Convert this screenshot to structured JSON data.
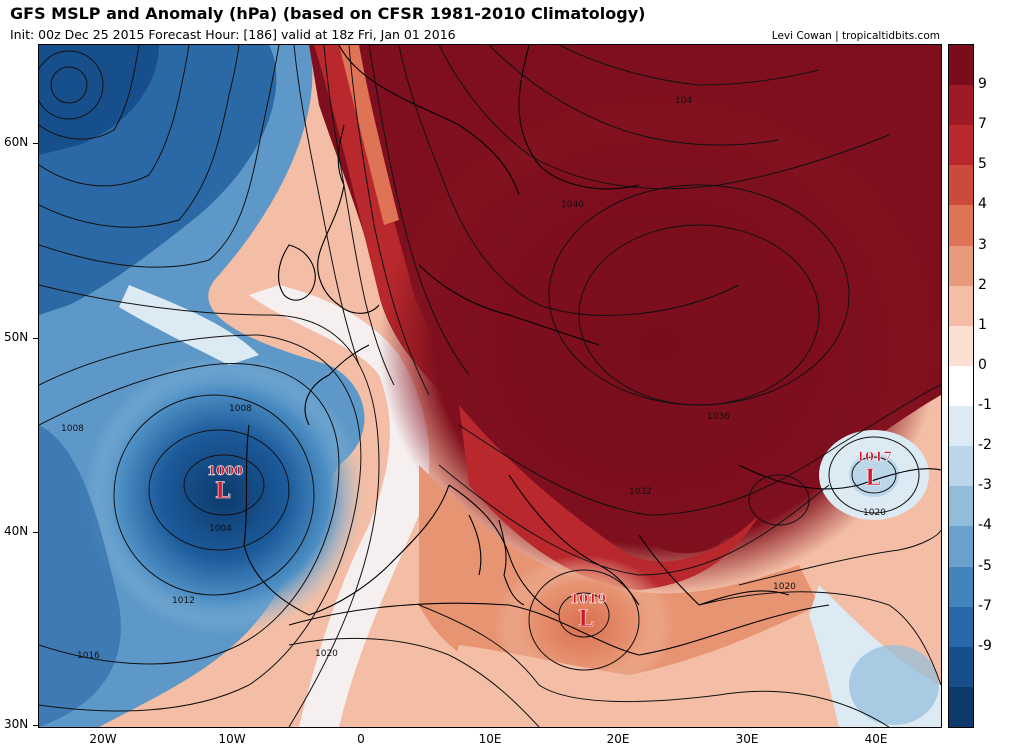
{
  "header": {
    "title": "GFS MSLP and Anomaly (hPa) (based on CFSR 1981-2010 Climatology)",
    "subtitle": "Init: 00z Dec 25 2015   Forecast Hour: [186]   valid at 18z Fri, Jan 01 2016",
    "credit": "Levi Cowan | tropicaltidbits.com"
  },
  "map": {
    "lat_labels": [
      "60N",
      "50N",
      "40N",
      "30N"
    ],
    "lon_labels": [
      "20W",
      "10W",
      "0",
      "10E",
      "20E",
      "30E",
      "40E"
    ],
    "lows": [
      {
        "value": "1000",
        "symbol": "L"
      },
      {
        "value": "1019",
        "symbol": "L"
      },
      {
        "value": "1017",
        "symbol": "L"
      }
    ],
    "isobar_labels": [
      "1008",
      "1008",
      "1004",
      "1012",
      "1016",
      "1020",
      "1040",
      "1036",
      "1032",
      "1020",
      "1020",
      "104"
    ]
  },
  "colorbar": {
    "labels": [
      "9",
      "7",
      "5",
      "4",
      "3",
      "2",
      "1",
      "0",
      "-1",
      "-2",
      "-3",
      "-4",
      "-5",
      "-7",
      "-9"
    ],
    "colors": [
      "#7a0d1c",
      "#9e1a24",
      "#b8282c",
      "#cc4a3c",
      "#de7356",
      "#e9997b",
      "#f3bea5",
      "#fadfd2",
      "#ffffff",
      "#dceaf4",
      "#bad6e8",
      "#91bddb",
      "#6aa1cc",
      "#4285bd",
      "#2867a8",
      "#174f8c",
      "#0d3a6b"
    ]
  }
}
